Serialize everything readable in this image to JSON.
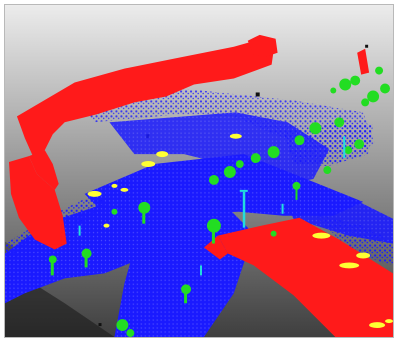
{
  "scene": {
    "type": "3D LiDAR point cloud view of a street intersection",
    "semantic_classes": [
      {
        "name": "ground",
        "color": "#1a1aff"
      },
      {
        "name": "building",
        "color": "#ff1a1a"
      },
      {
        "name": "vegetation",
        "color": "#22dd22"
      },
      {
        "name": "vehicle",
        "color": "#ffff33"
      },
      {
        "name": "pole",
        "color": "#22dddd"
      },
      {
        "name": "unlabeled",
        "color": "#111111"
      }
    ],
    "background": {
      "gradient_top": "#ececec",
      "gradient_bottom": "#3f3f3f"
    }
  }
}
